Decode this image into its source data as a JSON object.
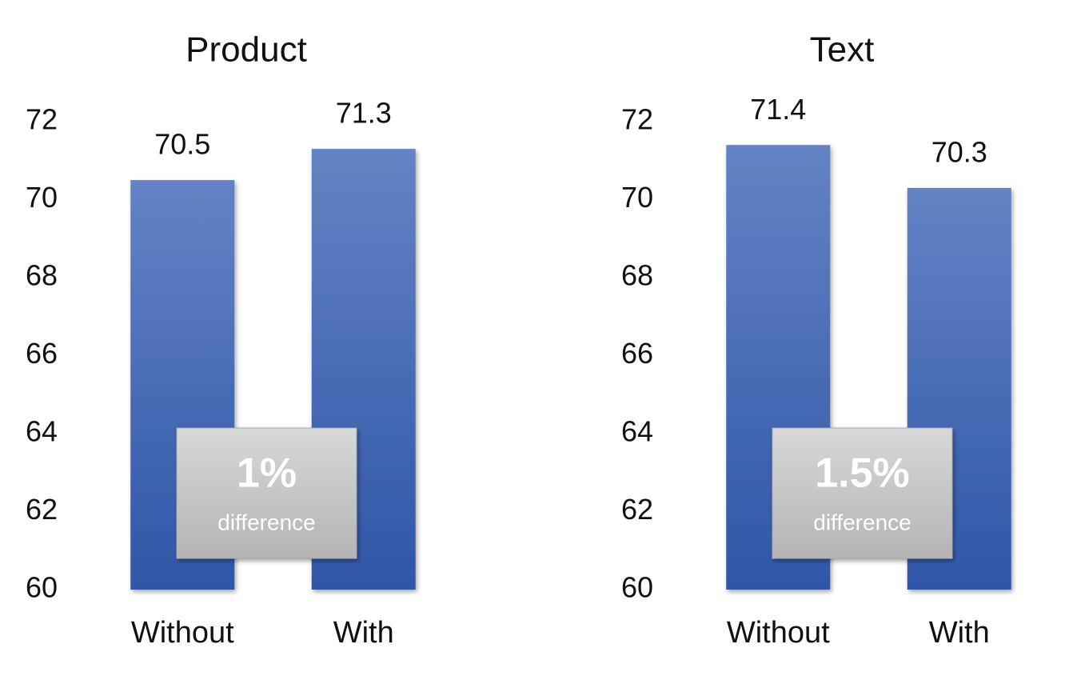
{
  "chart_data": [
    {
      "type": "bar",
      "title": "Product",
      "categories": [
        "Without",
        "With"
      ],
      "values": [
        70.5,
        71.3
      ],
      "color": "#4a6db8",
      "ylim": [
        60,
        72
      ],
      "yticks": [
        60,
        62,
        64,
        66,
        68,
        70,
        72
      ],
      "grid": false,
      "annotations": [
        "1%",
        "difference"
      ]
    },
    {
      "type": "bar",
      "title": "Text",
      "categories": [
        "Without",
        "With"
      ],
      "values": [
        71.4,
        70.3
      ],
      "color": "#4a6db8",
      "ylim": [
        60,
        72
      ],
      "yticks": [
        60,
        62,
        64,
        66,
        68,
        70,
        72
      ],
      "grid": false,
      "annotations": [
        "1.5%",
        "difference"
      ]
    }
  ]
}
